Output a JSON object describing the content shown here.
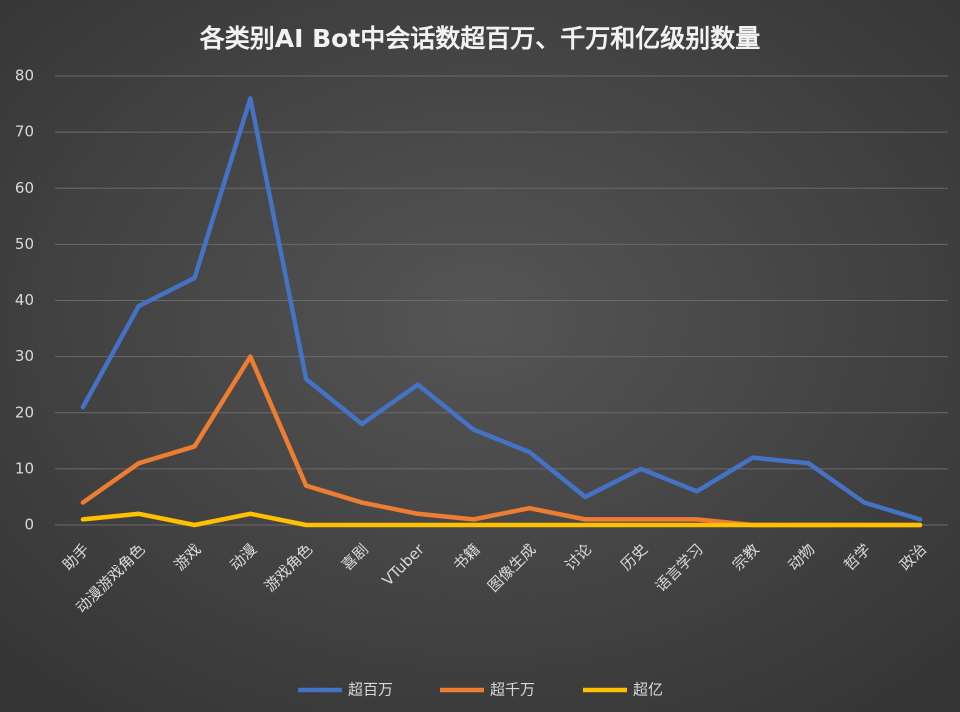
{
  "chart_data": {
    "type": "line",
    "title": "各类别AI Bot中会话数超百万、千万和亿级别数量",
    "categories": [
      "助手",
      "动漫游戏角色",
      "游戏",
      "动漫",
      "游戏角色",
      "喜剧",
      "VTuber",
      "书籍",
      "图像生成",
      "讨论",
      "历史",
      "语言学习",
      "宗教",
      "动物",
      "哲学",
      "政治"
    ],
    "series": [
      {
        "name": "超百万",
        "color": "#4472c4",
        "values": [
          21,
          39,
          44,
          76,
          26,
          18,
          25,
          17,
          13,
          5,
          10,
          6,
          12,
          11,
          4,
          1
        ]
      },
      {
        "name": "超千万",
        "color": "#ed7d31",
        "values": [
          4,
          11,
          14,
          30,
          7,
          4,
          2,
          1,
          3,
          1,
          1,
          1,
          0,
          0,
          0,
          0
        ]
      },
      {
        "name": "超亿",
        "color": "#ffc000",
        "values": [
          1,
          2,
          0,
          2,
          0,
          0,
          0,
          0,
          0,
          0,
          0,
          0,
          0,
          0,
          0,
          0
        ]
      }
    ],
    "ylim": [
      0,
      80
    ],
    "yticks": [
      0,
      10,
      20,
      30,
      40,
      50,
      60,
      70,
      80
    ],
    "grid": true,
    "legend": "bottom"
  }
}
